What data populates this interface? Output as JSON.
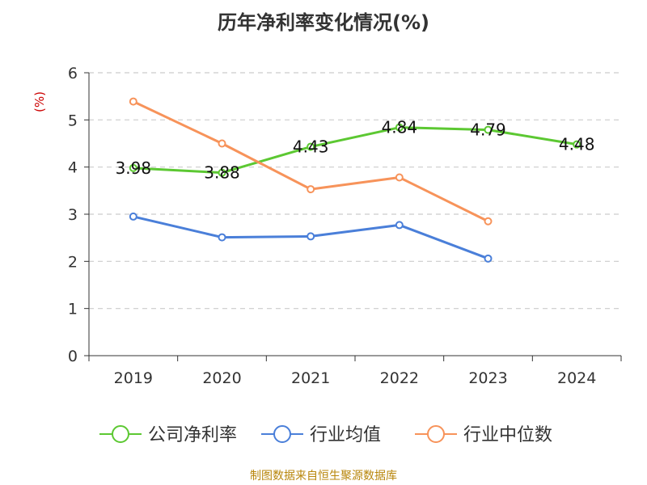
{
  "chart_data": {
    "type": "line",
    "title": "历年净利率变化情况(%)",
    "ylabel": "(%)",
    "xlabel": "",
    "categories": [
      "2019",
      "2020",
      "2021",
      "2022",
      "2023",
      "2024"
    ],
    "ylim": [
      0,
      6
    ],
    "yticks": [
      "0",
      "1",
      "2",
      "3",
      "4",
      "5",
      "6"
    ],
    "grid": true,
    "legend_position": "bottom",
    "series": [
      {
        "name": "公司净利率",
        "color": "#5cc832",
        "values": [
          3.98,
          3.88,
          4.43,
          4.84,
          4.79,
          4.48
        ],
        "labels": [
          "3.98",
          "3.88",
          "4.43",
          "4.84",
          "4.79",
          "4.48"
        ]
      },
      {
        "name": "行业均值",
        "color": "#4a7fd9",
        "values": [
          2.95,
          2.51,
          2.53,
          2.77,
          2.06,
          null
        ]
      },
      {
        "name": "行业中位数",
        "color": "#f7935a",
        "values": [
          5.39,
          4.5,
          3.53,
          3.78,
          2.85,
          null
        ]
      }
    ]
  },
  "source": "制图数据来自恒生聚源数据库"
}
